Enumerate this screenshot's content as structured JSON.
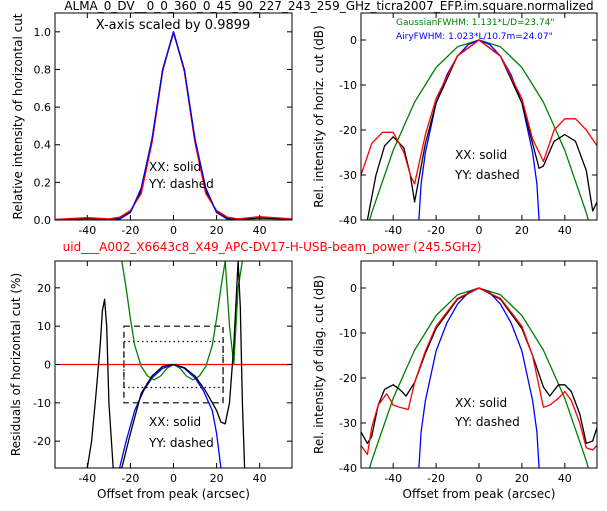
{
  "figure": {
    "title": "ALMA_0_DV__0_0_360_0_45_90_227_243_259_GHz_ticra2007_EFP.im.square.normalized",
    "subtitle": "uid___A002_X6643c8_X49_APC-DV17-H-USB-beam_power (245.5GHz)",
    "subtitle_color": "#ff0000"
  },
  "colors": {
    "data": "#000000",
    "model": "#ff0000",
    "gaussian": "#008000",
    "airy": "#0000ff",
    "zero_line": "#ff0000"
  },
  "chart_data": [
    {
      "type": "line",
      "panel": "top-left",
      "title": "",
      "annotation": "X-axis scaled by 0.9899",
      "xlabel": "",
      "ylabel": "Relative intensity of horizontal cut",
      "xlim": [
        -55,
        55
      ],
      "ylim": [
        0,
        1.1
      ],
      "xticks": [
        -40,
        -20,
        0,
        20,
        40
      ],
      "yticks": [
        0.0,
        0.2,
        0.4,
        0.6,
        0.8,
        1.0
      ],
      "ytick_labels": [
        "0.0",
        "0.2",
        "0.4",
        "0.6",
        "0.8",
        "1.0"
      ],
      "legend_text": [
        "XX: solid",
        "YY: dashed"
      ],
      "series": [
        {
          "color": "green",
          "x": [
            -55,
            -40,
            -30,
            -25,
            -20,
            -15,
            -10,
            -5,
            0,
            5,
            10,
            15,
            20,
            25,
            30,
            40,
            55
          ],
          "y": [
            0,
            0,
            0.002,
            0.01,
            0.04,
            0.16,
            0.43,
            0.8,
            1.0,
            0.8,
            0.43,
            0.16,
            0.04,
            0.01,
            0.002,
            0,
            0
          ]
        },
        {
          "color": "black",
          "x": [
            -55,
            -40,
            -30,
            -25,
            -20,
            -15,
            -10,
            -5,
            0,
            5,
            10,
            15,
            20,
            25,
            30,
            40,
            55
          ],
          "y": [
            0,
            0.008,
            0.005,
            0.012,
            0.045,
            0.15,
            0.42,
            0.8,
            0.995,
            0.8,
            0.42,
            0.15,
            0.045,
            0.012,
            0.004,
            0.01,
            0.005
          ]
        },
        {
          "color": "red",
          "x": [
            -55,
            -40,
            -30,
            -25,
            -20,
            -15,
            -10,
            -5,
            0,
            5,
            10,
            15,
            20,
            25,
            30,
            40,
            55
          ],
          "y": [
            0.003,
            0.012,
            0.006,
            0.015,
            0.05,
            0.14,
            0.41,
            0.79,
            1.0,
            0.79,
            0.41,
            0.14,
            0.05,
            0.015,
            0.006,
            0.018,
            0.006
          ]
        },
        {
          "color": "blue",
          "x": [
            -28,
            -25,
            -20,
            -15,
            -10,
            -5,
            0,
            5,
            10,
            15,
            20,
            25,
            28
          ],
          "y": [
            0,
            0.004,
            0.04,
            0.17,
            0.43,
            0.8,
            1.0,
            0.8,
            0.43,
            0.17,
            0.04,
            0.004,
            0
          ]
        }
      ]
    },
    {
      "type": "line",
      "panel": "top-right",
      "title": "",
      "xlabel": "",
      "ylabel": "Rel. intensity of horiz. cut (dB)",
      "xlim": [
        -55,
        55
      ],
      "ylim": [
        -40,
        6
      ],
      "xticks": [
        -40,
        -20,
        0,
        20,
        40
      ],
      "yticks": [
        0,
        -10,
        -20,
        -30,
        -40
      ],
      "legend_text": [
        "XX: solid",
        "YY: dashed"
      ],
      "fwhm_notes": [
        {
          "text": "GaussianFWHM: 1.131*L/D=23.74\"",
          "color": "green"
        },
        {
          "text": "AiryFWHM: 1.023*L/10.7m=24.07\"",
          "color": "blue"
        }
      ],
      "series": [
        {
          "color": "green",
          "x": [
            -55,
            -50,
            -40,
            -30,
            -20,
            -10,
            0,
            10,
            20,
            30,
            40,
            50,
            55
          ],
          "y": [
            -47,
            -38.4,
            -24.5,
            -13.8,
            -6.1,
            -1.5,
            0,
            -1.5,
            -6.1,
            -13.8,
            -24.5,
            -38.4,
            -47
          ]
        },
        {
          "color": "blue",
          "x": [
            -28,
            -27,
            -25,
            -20,
            -15,
            -10,
            -5,
            0,
            5,
            10,
            15,
            20,
            25,
            27,
            28
          ],
          "y": [
            -40,
            -32,
            -25,
            -14,
            -7.8,
            -3.6,
            -1,
            0,
            -1,
            -3.6,
            -7.8,
            -14,
            -25,
            -32,
            -40
          ]
        },
        {
          "color": "black",
          "x": [
            -52,
            -48,
            -44,
            -40,
            -35,
            -32,
            -30,
            -25,
            -20,
            -10,
            0,
            10,
            20,
            25,
            28,
            30,
            35,
            40,
            45,
            50,
            53,
            55
          ],
          "y": [
            -40,
            -30,
            -23.5,
            -21.5,
            -24,
            -30,
            -36,
            -23,
            -14,
            -3.5,
            0,
            -3.6,
            -14,
            -23,
            -28.5,
            -28,
            -22.5,
            -21,
            -22.5,
            -29,
            -38,
            -36
          ]
        },
        {
          "color": "red",
          "x": [
            -55,
            -50,
            -45,
            -40,
            -35,
            -32,
            -30,
            -25,
            -20,
            -10,
            0,
            10,
            20,
            25,
            28,
            30,
            35,
            40,
            45,
            50,
            55
          ],
          "y": [
            -30,
            -23,
            -20.5,
            -20.5,
            -25,
            -30,
            -32,
            -21,
            -13,
            -3.5,
            0,
            -3.6,
            -13,
            -22,
            -25,
            -27,
            -20,
            -17.5,
            -17.5,
            -20,
            -23.5
          ]
        }
      ]
    },
    {
      "type": "line",
      "panel": "bottom-left",
      "title": "",
      "xlabel": "Offset from peak (arcsec)",
      "ylabel": "Residuals of horizontal cut (%)",
      "xlim": [
        -55,
        55
      ],
      "ylim": [
        -27,
        27
      ],
      "xticks": [
        -40,
        -20,
        0,
        20,
        40
      ],
      "yticks": [
        -20,
        -10,
        0,
        10,
        20
      ],
      "legend_text": [
        "XX: solid",
        "YY: dashed"
      ],
      "boxes": [
        {
          "style": "dashed",
          "x": [
            -23,
            23
          ],
          "y": [
            -10,
            10
          ]
        },
        {
          "style": "dotted",
          "x": [
            -23,
            23
          ],
          "y": [
            -6,
            6
          ]
        }
      ],
      "series": [
        {
          "color": "red",
          "x": [
            -55,
            55
          ],
          "y": [
            0,
            0
          ]
        },
        {
          "color": "green",
          "x": [
            -24,
            -22,
            -20,
            -18,
            -15,
            -12,
            -9,
            -6,
            -3,
            0,
            3,
            6,
            9,
            12,
            15,
            18,
            20,
            22,
            24,
            26,
            28,
            30,
            32
          ],
          "y": [
            27,
            20,
            12,
            5,
            -0.5,
            -3,
            -4,
            -3,
            -1,
            0,
            -1,
            -3,
            -4,
            -3,
            -0.5,
            5,
            12,
            20,
            27,
            10,
            0,
            20,
            27
          ]
        },
        {
          "color": "blue",
          "x": [
            -25,
            -22,
            -18,
            -14,
            -10,
            -5,
            0,
            5,
            10,
            14,
            18,
            20,
            22
          ],
          "y": [
            -27,
            -20,
            -12,
            -7,
            -3.5,
            -1,
            0,
            -1,
            -3.5,
            -7,
            -12,
            -18,
            -27
          ]
        },
        {
          "color": "black",
          "x": [
            -40,
            -38,
            -36,
            -34,
            -33,
            -32,
            -31,
            -30,
            -28,
            -24,
            -20,
            -15,
            -10,
            -5,
            0,
            5,
            10,
            15,
            18,
            20,
            22,
            24,
            26,
            28,
            30,
            31,
            32,
            33
          ],
          "y": [
            -27,
            -20,
            -8,
            5,
            14,
            17,
            10,
            -10,
            -27,
            -27,
            -18,
            -7.5,
            -3,
            -0.5,
            0,
            -0.8,
            -3,
            -7,
            -10,
            -12,
            -15,
            -15.5,
            -10,
            5,
            27,
            15,
            -10,
            -27
          ]
        }
      ]
    },
    {
      "type": "line",
      "panel": "bottom-right",
      "title": "",
      "xlabel": "Offset from peak (arcsec)",
      "ylabel": "Rel. intensity of diag. cut (dB)",
      "xlim": [
        -55,
        55
      ],
      "ylim": [
        -40,
        6
      ],
      "xticks": [
        -40,
        -20,
        0,
        20,
        40
      ],
      "yticks": [
        0,
        -10,
        -20,
        -30,
        -40
      ],
      "legend_text": [
        "XX: solid",
        "YY: dashed"
      ],
      "series": [
        {
          "color": "green",
          "x": [
            -55,
            -50,
            -40,
            -30,
            -20,
            -10,
            0,
            10,
            20,
            30,
            40,
            50,
            55
          ],
          "y": [
            -47,
            -38.4,
            -24.5,
            -13.8,
            -6.1,
            -1.5,
            0,
            -1.5,
            -6.1,
            -13.8,
            -24.5,
            -38.4,
            -47
          ]
        },
        {
          "color": "blue",
          "x": [
            -28,
            -27,
            -25,
            -20,
            -15,
            -10,
            -5,
            0,
            5,
            10,
            15,
            20,
            25,
            27,
            28
          ],
          "y": [
            -40,
            -32,
            -25,
            -14,
            -7.8,
            -3.6,
            -1,
            0,
            -1,
            -3.6,
            -7.8,
            -14,
            -25,
            -32,
            -40
          ]
        },
        {
          "color": "black",
          "x": [
            -55,
            -52,
            -50,
            -47,
            -44,
            -40,
            -37,
            -34,
            -30,
            -25,
            -20,
            -10,
            0,
            10,
            20,
            25,
            30,
            33,
            37,
            40,
            43,
            47,
            50,
            53,
            55
          ],
          "y": [
            -32,
            -34.5,
            -33,
            -26,
            -22.5,
            -21.5,
            -22.5,
            -24,
            -21,
            -14.5,
            -9,
            -2.5,
            0,
            -2.5,
            -9,
            -15,
            -22,
            -24,
            -21.5,
            -21.5,
            -23,
            -28,
            -34.5,
            -34,
            -31
          ]
        },
        {
          "color": "red",
          "x": [
            -55,
            -52,
            -50,
            -47,
            -43,
            -40,
            -37,
            -33,
            -30,
            -25,
            -20,
            -10,
            0,
            10,
            20,
            25,
            30,
            33,
            37,
            40,
            43,
            47,
            50,
            53,
            55
          ],
          "y": [
            -35,
            -37,
            -31,
            -26,
            -23.5,
            -26,
            -26.5,
            -27,
            -21,
            -14,
            -8.5,
            -2.3,
            0,
            -2.3,
            -8.5,
            -15,
            -26.5,
            -26,
            -24.5,
            -23,
            -25,
            -30,
            -35.5,
            -36,
            -35
          ]
        }
      ]
    }
  ]
}
